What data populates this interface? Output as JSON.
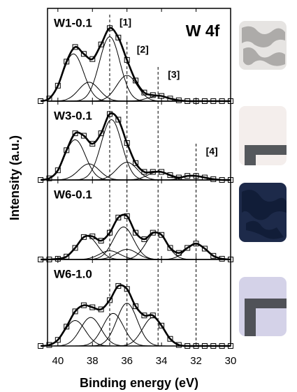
{
  "chart_data": [
    {
      "type": "line",
      "label": "W1-0.1",
      "annotation": "W 4f",
      "ylabel": "Intensity (a.u.)",
      "x": [
        41,
        40.5,
        40,
        39.5,
        39,
        38.5,
        38,
        37.5,
        37,
        36.5,
        36,
        35.5,
        35,
        34.5,
        34,
        33.5,
        33,
        32.5,
        32,
        31.5,
        31,
        30.5,
        30
      ],
      "values": [
        0,
        3,
        18,
        46,
        63,
        55,
        49,
        66,
        85,
        74,
        48,
        24,
        10,
        7,
        6,
        3,
        1,
        0,
        0,
        0,
        0,
        0,
        0
      ],
      "components": [
        {
          "center": 37.0,
          "height": 75,
          "fwhm": 1.4
        },
        {
          "center": 39.1,
          "height": 55,
          "fwhm": 1.4
        },
        {
          "center": 36.0,
          "height": 30,
          "fwhm": 1.4
        },
        {
          "center": 38.2,
          "height": 22,
          "fwhm": 1.4
        },
        {
          "center": 34.2,
          "height": 6,
          "fwhm": 1.4
        }
      ],
      "markers": [
        {
          "value": 37,
          "label": "[1]"
        },
        {
          "value": 36,
          "label": "[2]"
        },
        {
          "value": 34.2,
          "label": "[3]"
        }
      ],
      "xlim": [
        40.6,
        30
      ],
      "ylim": [
        0,
        108
      ]
    },
    {
      "type": "line",
      "label": "W3-0.1",
      "x": [
        41,
        40.5,
        40,
        39.5,
        39,
        38.5,
        38,
        37.5,
        37,
        36.5,
        36,
        35.5,
        35,
        34.5,
        34,
        33.5,
        33,
        32.5,
        32,
        31.5,
        31,
        30.5,
        30
      ],
      "values": [
        0,
        2,
        12,
        37,
        58,
        55,
        45,
        58,
        82,
        75,
        46,
        21,
        10,
        10,
        10,
        6,
        3,
        5,
        5,
        3,
        1,
        0,
        0
      ],
      "components": [
        {
          "center": 36.9,
          "height": 75,
          "fwhm": 1.4
        },
        {
          "center": 39.0,
          "height": 50,
          "fwhm": 1.4
        },
        {
          "center": 36.0,
          "height": 22,
          "fwhm": 1.4
        },
        {
          "center": 38.2,
          "height": 20,
          "fwhm": 1.4
        },
        {
          "center": 34.2,
          "height": 10,
          "fwhm": 1.4
        },
        {
          "center": 32.2,
          "height": 5,
          "fwhm": 1.4
        }
      ],
      "markers": [
        {
          "value": 32,
          "label": "[4]"
        }
      ],
      "xlim": [
        40.6,
        30
      ],
      "ylim": [
        0,
        98
      ]
    },
    {
      "type": "line",
      "label": "W6-0.1",
      "x": [
        41,
        40.5,
        40,
        39.5,
        39,
        38.5,
        38,
        37.5,
        37,
        36.5,
        36,
        35.5,
        35,
        34.5,
        34,
        33.5,
        33,
        32.5,
        32,
        31.5,
        31,
        30.5,
        30
      ],
      "values": [
        0,
        0,
        1,
        4,
        16,
        31,
        32,
        26,
        37,
        58,
        60,
        37,
        28,
        37,
        34,
        16,
        9,
        16,
        22,
        15,
        5,
        1,
        0
      ],
      "components": [
        {
          "center": 36.2,
          "height": 45,
          "fwhm": 1.4
        },
        {
          "center": 38.3,
          "height": 32,
          "fwhm": 1.4
        },
        {
          "center": 34.3,
          "height": 38,
          "fwhm": 1.4
        },
        {
          "center": 32.0,
          "height": 22,
          "fwhm": 1.4
        },
        {
          "center": 37.0,
          "height": 12,
          "fwhm": 1.4
        },
        {
          "center": 36.0,
          "height": 14,
          "fwhm": 1.4
        }
      ],
      "xlim": [
        40.6,
        30
      ],
      "ylim": [
        0,
        110
      ]
    },
    {
      "type": "line",
      "label": "W6-1.0",
      "xlabel": "Binding energy (eV)",
      "x": [
        41,
        40.5,
        40,
        39.5,
        39,
        38.5,
        38,
        37.5,
        37,
        36.5,
        36,
        35.5,
        35,
        34.5,
        34,
        33.5,
        33,
        32.5,
        32,
        31.5,
        31,
        30.5,
        30
      ],
      "values": [
        0,
        1,
        6,
        19,
        34,
        40,
        38,
        36,
        45,
        59,
        56,
        39,
        30,
        30,
        20,
        7,
        1,
        0,
        0,
        0,
        0,
        0,
        0
      ],
      "components": [
        {
          "center": 39.0,
          "height": 25,
          "fwhm": 1.4
        },
        {
          "center": 38.1,
          "height": 28,
          "fwhm": 1.4
        },
        {
          "center": 36.8,
          "height": 32,
          "fwhm": 1.4
        },
        {
          "center": 36.0,
          "height": 42,
          "fwhm": 1.4
        },
        {
          "center": 34.5,
          "height": 28,
          "fwhm": 1.4
        }
      ],
      "xlim": [
        40.6,
        30
      ],
      "ylim": [
        0,
        85
      ],
      "xticks": [
        40,
        38,
        36,
        34,
        32,
        30
      ]
    }
  ]
}
